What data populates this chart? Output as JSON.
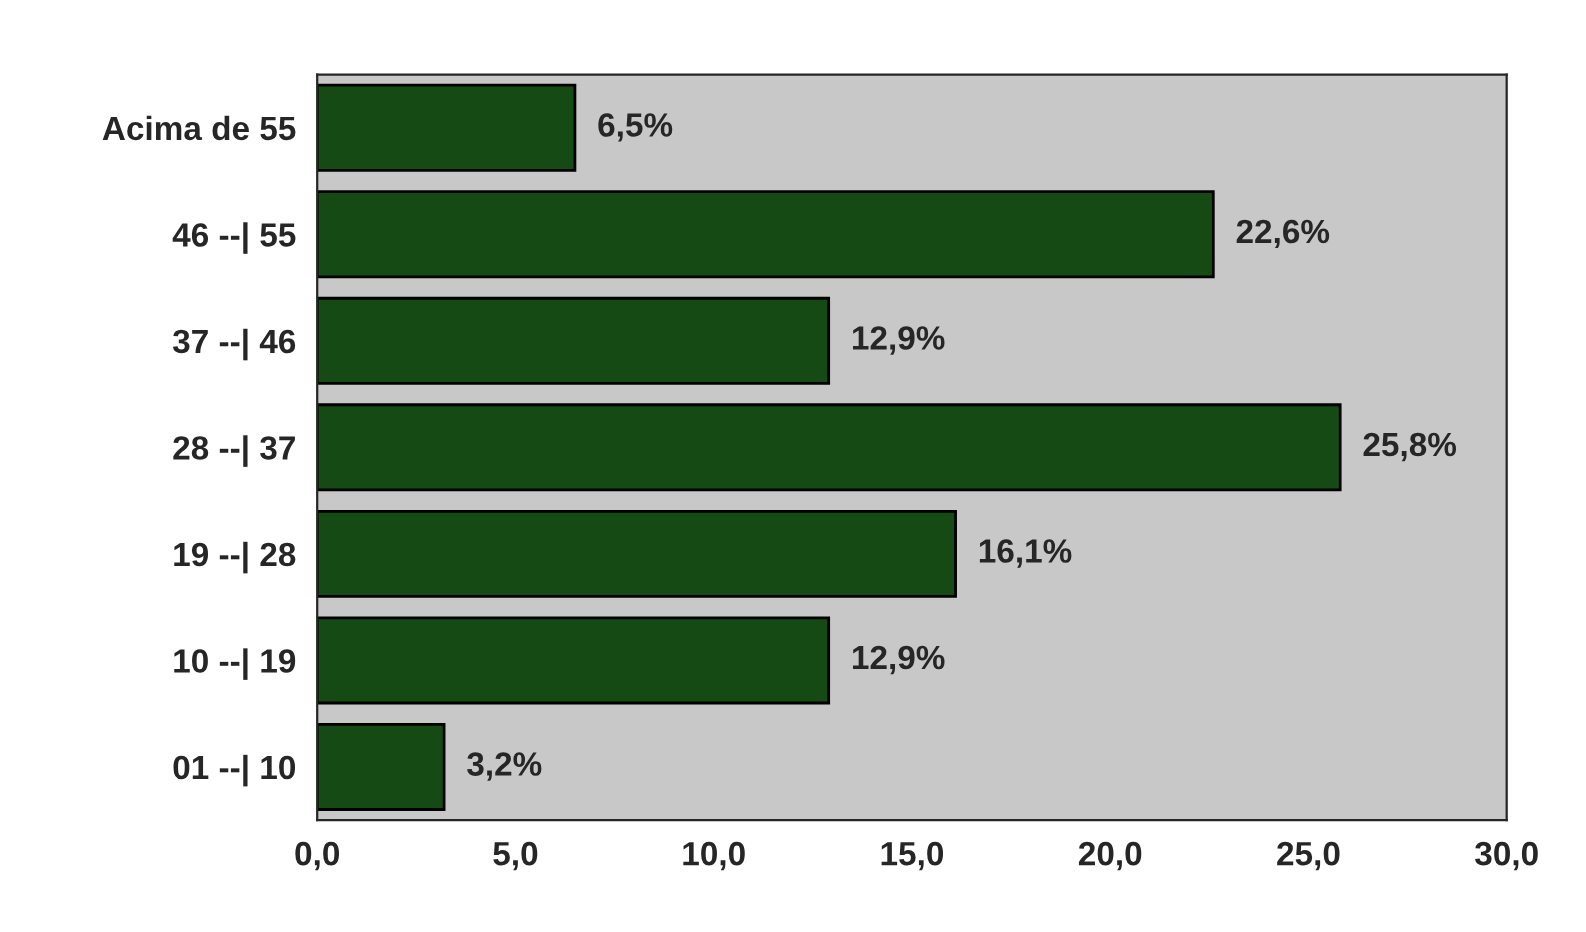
{
  "chart_data": {
    "type": "bar",
    "orientation": "horizontal",
    "categories": [
      "Acima de 55",
      "46 --| 55",
      "37 --| 46",
      "28 --| 37",
      "19 --| 28",
      "10 --| 19",
      "01 --| 10"
    ],
    "values": [
      6.5,
      22.6,
      12.9,
      25.8,
      16.1,
      12.9,
      3.2
    ],
    "value_labels": [
      "6,5%",
      "22,6%",
      "12,9%",
      "25,8%",
      "16,1%",
      "12,9%",
      "3,2%"
    ],
    "color": "#154a15",
    "xlim": [
      0,
      30
    ],
    "xticks": [
      {
        "value": 0,
        "label": "0,0"
      },
      {
        "value": 5,
        "label": "5,0"
      },
      {
        "value": 10,
        "label": "10,0"
      },
      {
        "value": 15,
        "label": "15,0"
      },
      {
        "value": 20,
        "label": "20,0"
      },
      {
        "value": 25,
        "label": "25,0"
      },
      {
        "value": 30,
        "label": "30,0"
      }
    ]
  }
}
